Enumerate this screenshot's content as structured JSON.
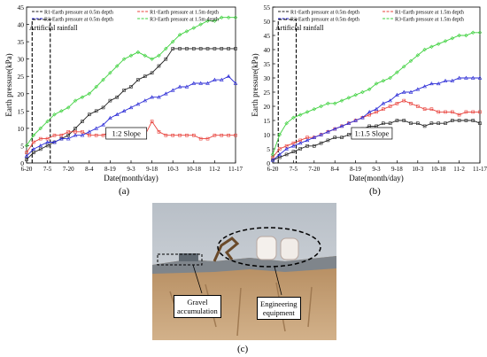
{
  "chart_data": [
    {
      "type": "line",
      "panel_label": "(a)",
      "ylabel": "Earth pressure(kPa)",
      "xlabel": "Date(month/day)",
      "x_ticks": [
        "6-20",
        "7-5",
        "7-20",
        "8-4",
        "8-19",
        "9-3",
        "9-18",
        "10-3",
        "10-18",
        "11-2",
        "11-17"
      ],
      "y_ticks": [
        0,
        5,
        10,
        15,
        20,
        25,
        30,
        35,
        40,
        45
      ],
      "xlim": [
        0,
        150
      ],
      "ylim": [
        0,
        45
      ],
      "annotation": "Artificial rainfall",
      "rainfall_window": [
        4,
        17
      ],
      "slope_label": "1:2 Slope",
      "series": [
        {
          "name": "R1-Earth pressure at 0.5m depth",
          "color": "#222222",
          "marker": "square",
          "x": [
            0,
            5,
            10,
            15,
            20,
            25,
            30,
            35,
            40,
            45,
            50,
            55,
            60,
            65,
            70,
            75,
            80,
            85,
            90,
            95,
            100,
            105,
            110,
            115,
            120,
            125,
            130,
            135,
            140,
            145,
            150
          ],
          "values": [
            1,
            3,
            4,
            5,
            6,
            7,
            8,
            10,
            12,
            14,
            15,
            16,
            18,
            19,
            21,
            22,
            24,
            25,
            26,
            28,
            30,
            33,
            33,
            33,
            33,
            33,
            33,
            33,
            33,
            33,
            33
          ]
        },
        {
          "name": "R1-Earth pressure at 1.5m depth",
          "color": "#e8403a",
          "marker": "square",
          "x": [
            0,
            5,
            10,
            15,
            20,
            25,
            30,
            35,
            40,
            45,
            50,
            55,
            60,
            65,
            70,
            75,
            80,
            85,
            90,
            95,
            100,
            105,
            110,
            115,
            120,
            125,
            130,
            135,
            140,
            145,
            150
          ],
          "values": [
            3,
            6,
            7,
            7,
            8,
            8,
            9,
            9,
            9,
            8,
            8,
            8,
            9,
            9,
            9,
            8,
            8,
            8,
            12,
            9,
            8,
            8,
            8,
            8,
            8,
            7,
            7,
            8,
            8,
            8,
            8
          ]
        },
        {
          "name": "R3-Earth pressure at 0.5m depth",
          "color": "#2b2bd6",
          "marker": "triangle",
          "x": [
            0,
            5,
            10,
            15,
            20,
            25,
            30,
            35,
            40,
            45,
            50,
            55,
            60,
            65,
            70,
            75,
            80,
            85,
            90,
            95,
            100,
            105,
            110,
            115,
            120,
            125,
            130,
            135,
            140,
            145,
            150
          ],
          "values": [
            2,
            4,
            5,
            6,
            6,
            7,
            7,
            8,
            8,
            9,
            10,
            11,
            13,
            14,
            15,
            16,
            17,
            18,
            19,
            19,
            20,
            21,
            22,
            22,
            23,
            23,
            23,
            24,
            24,
            25,
            23
          ]
        },
        {
          "name": "R3-Earth pressure at 1.5m depth",
          "color": "#3ed13e",
          "marker": "diamond",
          "x": [
            0,
            5,
            10,
            15,
            20,
            25,
            30,
            35,
            40,
            45,
            50,
            55,
            60,
            65,
            70,
            75,
            80,
            85,
            90,
            95,
            100,
            105,
            110,
            115,
            120,
            125,
            130,
            135,
            140,
            145,
            150
          ],
          "values": [
            5,
            8,
            10,
            12,
            14,
            15,
            16,
            18,
            19,
            20,
            22,
            24,
            26,
            28,
            30,
            31,
            32,
            31,
            30,
            31,
            33,
            35,
            37,
            38,
            39,
            40,
            41,
            41,
            42,
            42,
            42
          ]
        }
      ]
    },
    {
      "type": "line",
      "panel_label": "(b)",
      "ylabel": "Earth pressure(kPa)",
      "xlabel": "Date(month/day)",
      "x_ticks": [
        "6-20",
        "7-5",
        "7-20",
        "8-4",
        "8-19",
        "9-3",
        "9-18",
        "10-3",
        "10-18",
        "11-2",
        "11-17"
      ],
      "y_ticks": [
        0,
        5,
        10,
        15,
        20,
        25,
        30,
        35,
        40,
        45,
        50,
        55
      ],
      "xlim": [
        0,
        150
      ],
      "ylim": [
        0,
        55
      ],
      "annotation": "Artificial rainfall",
      "rainfall_window": [
        4,
        17
      ],
      "slope_label": "1:1.5 Slope",
      "series": [
        {
          "name": "R1-Earth pressure at 0.5m depth",
          "color": "#222222",
          "marker": "square",
          "x": [
            0,
            5,
            10,
            15,
            20,
            25,
            30,
            35,
            40,
            45,
            50,
            55,
            60,
            65,
            70,
            75,
            80,
            85,
            90,
            95,
            100,
            105,
            110,
            115,
            120,
            125,
            130,
            135,
            140,
            145,
            150
          ],
          "values": [
            1,
            2,
            3,
            4,
            5,
            6,
            6,
            7,
            8,
            9,
            9,
            10,
            11,
            12,
            13,
            13,
            14,
            14,
            15,
            15,
            14,
            14,
            13,
            14,
            14,
            14,
            15,
            15,
            15,
            15,
            14
          ]
        },
        {
          "name": "R1-Earth pressure at 1.5m depth",
          "color": "#e8403a",
          "marker": "square",
          "x": [
            0,
            5,
            10,
            15,
            20,
            25,
            30,
            35,
            40,
            45,
            50,
            55,
            60,
            65,
            70,
            75,
            80,
            85,
            90,
            95,
            100,
            105,
            110,
            115,
            120,
            125,
            130,
            135,
            140,
            145,
            150
          ],
          "values": [
            2,
            5,
            6,
            7,
            8,
            9,
            9,
            10,
            11,
            12,
            13,
            14,
            15,
            16,
            17,
            18,
            19,
            20,
            21,
            22,
            21,
            20,
            19,
            19,
            18,
            18,
            18,
            17,
            18,
            18,
            18
          ]
        },
        {
          "name": "R3-Earth pressure at 0.5m depth",
          "color": "#2b2bd6",
          "marker": "triangle",
          "x": [
            0,
            5,
            10,
            15,
            20,
            25,
            30,
            35,
            40,
            45,
            50,
            55,
            60,
            65,
            70,
            75,
            80,
            85,
            90,
            95,
            100,
            105,
            110,
            115,
            120,
            125,
            130,
            135,
            140,
            145,
            150
          ],
          "values": [
            1,
            3,
            5,
            6,
            7,
            8,
            9,
            10,
            11,
            12,
            13,
            14,
            15,
            16,
            18,
            19,
            21,
            22,
            24,
            25,
            25,
            26,
            27,
            28,
            28,
            29,
            29,
            30,
            30,
            30,
            30
          ]
        },
        {
          "name": "R3-Earth pressure at 1.5m depth",
          "color": "#3ed13e",
          "marker": "diamond",
          "x": [
            0,
            5,
            10,
            15,
            20,
            25,
            30,
            35,
            40,
            45,
            50,
            55,
            60,
            65,
            70,
            75,
            80,
            85,
            90,
            95,
            100,
            105,
            110,
            115,
            120,
            125,
            130,
            135,
            140,
            145,
            150
          ],
          "values": [
            3,
            10,
            14,
            16,
            17,
            18,
            19,
            20,
            21,
            21,
            22,
            23,
            24,
            25,
            26,
            28,
            29,
            30,
            32,
            34,
            36,
            38,
            40,
            41,
            42,
            43,
            44,
            45,
            45,
            46,
            46
          ]
        }
      ]
    }
  ],
  "photo": {
    "panel_label": "(c)",
    "callouts": [
      "Gravel\naccumulation",
      "Engineering\nequipment"
    ]
  },
  "colors": {
    "sky": "#c9ced4",
    "soil": "#c9a37a",
    "soil_dark": "#a07a52"
  }
}
